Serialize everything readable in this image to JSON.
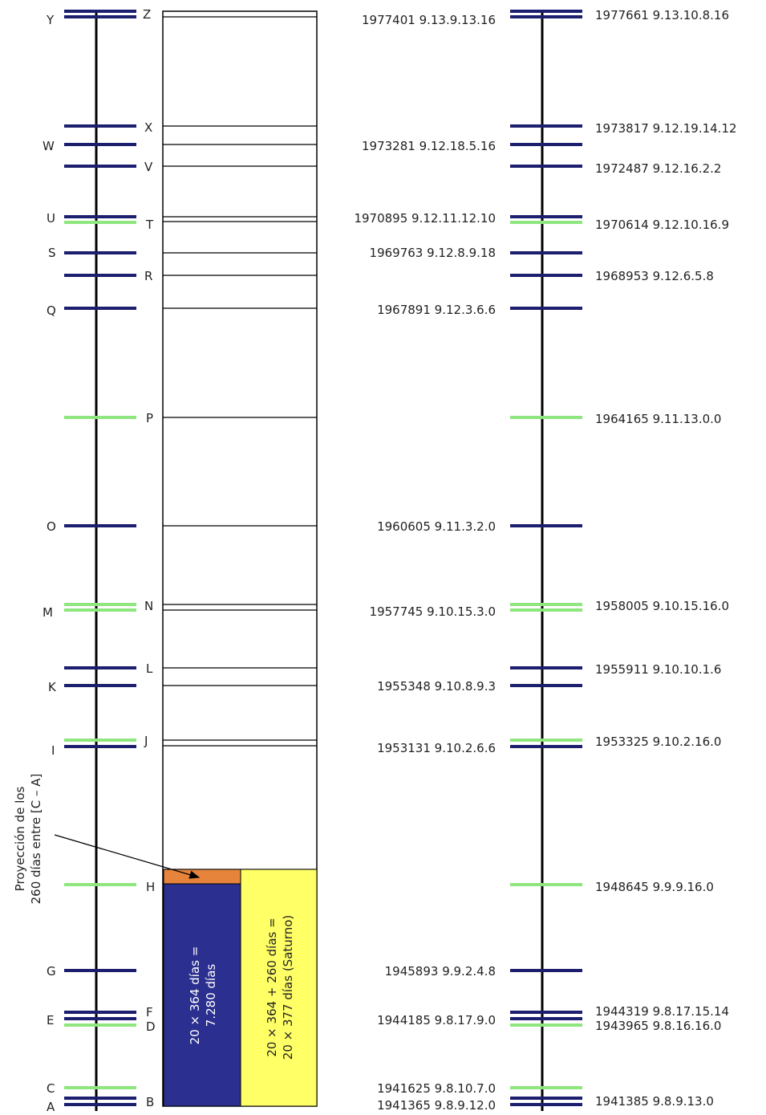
{
  "colors": {
    "navy": "#1b1f6e",
    "green": "#8fe67f",
    "axis": "#000000",
    "orange": "#e6843c",
    "blue_block": "#2b2f8f",
    "yellow_block": "#ffff66"
  },
  "left_labels": [
    {
      "id": "Y",
      "text": "Y"
    },
    {
      "id": "W",
      "text": "W"
    },
    {
      "id": "U",
      "text": "U"
    },
    {
      "id": "S",
      "text": "S"
    },
    {
      "id": "Q",
      "text": "Q"
    },
    {
      "id": "O",
      "text": "O"
    },
    {
      "id": "M",
      "text": "M"
    },
    {
      "id": "K",
      "text": "K"
    },
    {
      "id": "I",
      "text": "I"
    },
    {
      "id": "G",
      "text": "G"
    },
    {
      "id": "E",
      "text": "E"
    },
    {
      "id": "C",
      "text": "C"
    },
    {
      "id": "A",
      "text": "A"
    }
  ],
  "right_labels": [
    {
      "id": "Z",
      "text": "Z"
    },
    {
      "id": "X",
      "text": "X"
    },
    {
      "id": "V",
      "text": "V"
    },
    {
      "id": "T",
      "text": "T"
    },
    {
      "id": "R",
      "text": "R"
    },
    {
      "id": "P",
      "text": "P"
    },
    {
      "id": "N",
      "text": "N"
    },
    {
      "id": "L",
      "text": "L"
    },
    {
      "id": "J",
      "text": "J"
    },
    {
      "id": "H",
      "text": "H"
    },
    {
      "id": "F",
      "text": "F"
    },
    {
      "id": "D",
      "text": "D"
    },
    {
      "id": "B",
      "text": "B"
    }
  ],
  "middle_dates": [
    {
      "id": "z",
      "text": "1977401  9.13.9.13.16"
    },
    {
      "id": "v",
      "text": "1973281  9.12.18.5.16"
    },
    {
      "id": "u",
      "text": "1970895  9.12.11.12.10"
    },
    {
      "id": "s",
      "text": "1969763  9.12.8.9.18"
    },
    {
      "id": "q",
      "text": "1967891  9.12.3.6.6"
    },
    {
      "id": "o",
      "text": "1960605  9.11.3.2.0"
    },
    {
      "id": "m",
      "text": "1957745  9.10.15.3.0"
    },
    {
      "id": "k",
      "text": "1955348  9.10.8.9.3"
    },
    {
      "id": "i",
      "text": "1953131  9.10.2.6.6"
    },
    {
      "id": "g",
      "text": "1945893  9.9.2.4.8"
    },
    {
      "id": "e",
      "text": "1944185  9.8.17.9.0"
    },
    {
      "id": "c",
      "text": "1941625  9.8.10.7.0"
    },
    {
      "id": "a",
      "text": "1941365  9.8.9.12.0"
    }
  ],
  "right_dates": [
    {
      "id": "z",
      "text": "1977661  9.13.10.8.16"
    },
    {
      "id": "x",
      "text": "1973817  9.12.19.14.12"
    },
    {
      "id": "v",
      "text": "1972487  9.12.16.2.2"
    },
    {
      "id": "t",
      "text": "1970614  9.12.10.16.9"
    },
    {
      "id": "r",
      "text": "1968953  9.12.6.5.8"
    },
    {
      "id": "p",
      "text": "1964165  9.11.13.0.0"
    },
    {
      "id": "n",
      "text": "1958005  9.10.15.16.0"
    },
    {
      "id": "l",
      "text": "1955911  9.10.10.1.6"
    },
    {
      "id": "j",
      "text": "1953325  9.10.2.16.0"
    },
    {
      "id": "h",
      "text": "1948645  9.9.9.16.0"
    },
    {
      "id": "f",
      "text": "1944319  9.8.17.15.14"
    },
    {
      "id": "d",
      "text": "1943965  9.8.16.16.0"
    },
    {
      "id": "b",
      "text": "1941385  9.8.9.13.0"
    }
  ],
  "annotations": {
    "projection_line1": "Proyección de los",
    "projection_line2": "260 días entre [C – A]",
    "blue_block_line1": "20 × 364 días =",
    "blue_block_line2": "7.280 días",
    "yellow_block_line1": "20 × 364 + 260 días =",
    "yellow_block_line2": "20 × 377 días (Saturno)"
  }
}
